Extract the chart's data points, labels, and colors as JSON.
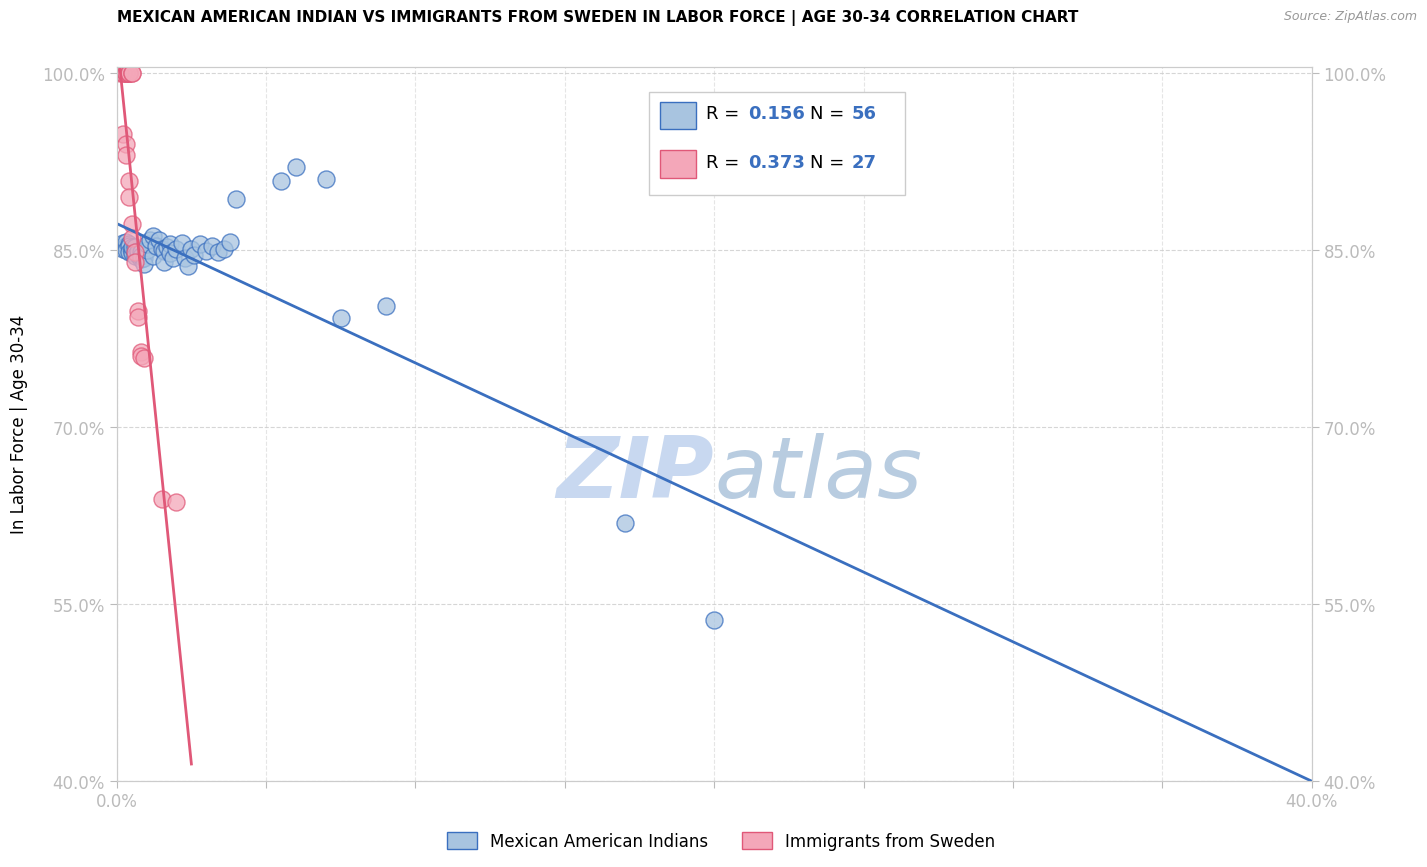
{
  "title": "MEXICAN AMERICAN INDIAN VS IMMIGRANTS FROM SWEDEN IN LABOR FORCE | AGE 30-34 CORRELATION CHART",
  "source": "Source: ZipAtlas.com",
  "ylabel": "In Labor Force | Age 30-34",
  "x_min": 0.0,
  "x_max": 0.4,
  "y_min": 0.4,
  "y_max": 1.005,
  "x_ticks": [
    0.0,
    0.05,
    0.1,
    0.15,
    0.2,
    0.25,
    0.3,
    0.35,
    0.4
  ],
  "x_tick_labels": [
    "0.0%",
    "",
    "",
    "",
    "",
    "",
    "",
    "",
    "40.0%"
  ],
  "y_ticks": [
    0.4,
    0.55,
    0.7,
    0.85,
    1.0
  ],
  "y_tick_labels": [
    "40.0%",
    "55.0%",
    "70.0%",
    "85.0%",
    "100.0%"
  ],
  "blue_R": 0.156,
  "blue_N": 56,
  "pink_R": 0.373,
  "pink_N": 27,
  "blue_color": "#a8c4e0",
  "pink_color": "#f4a7b9",
  "blue_line_color": "#3a6fbf",
  "pink_line_color": "#e05878",
  "blue_scatter": [
    [
      0.002,
      0.851
    ],
    [
      0.002,
      0.856
    ],
    [
      0.003,
      0.853
    ],
    [
      0.003,
      0.857
    ],
    [
      0.003,
      0.85
    ],
    [
      0.004,
      0.855
    ],
    [
      0.004,
      0.853
    ],
    [
      0.004,
      0.848
    ],
    [
      0.005,
      0.851
    ],
    [
      0.005,
      0.849
    ],
    [
      0.005,
      0.847
    ],
    [
      0.005,
      0.852
    ],
    [
      0.006,
      0.848
    ],
    [
      0.006,
      0.852
    ],
    [
      0.006,
      0.845
    ],
    [
      0.007,
      0.846
    ],
    [
      0.007,
      0.849
    ],
    [
      0.008,
      0.848
    ],
    [
      0.008,
      0.842
    ],
    [
      0.008,
      0.845
    ],
    [
      0.009,
      0.843
    ],
    [
      0.009,
      0.838
    ],
    [
      0.01,
      0.85
    ],
    [
      0.01,
      0.855
    ],
    [
      0.011,
      0.858
    ],
    [
      0.012,
      0.862
    ],
    [
      0.012,
      0.845
    ],
    [
      0.013,
      0.853
    ],
    [
      0.014,
      0.858
    ],
    [
      0.015,
      0.851
    ],
    [
      0.016,
      0.849
    ],
    [
      0.016,
      0.84
    ],
    [
      0.017,
      0.852
    ],
    [
      0.018,
      0.855
    ],
    [
      0.018,
      0.847
    ],
    [
      0.019,
      0.843
    ],
    [
      0.02,
      0.851
    ],
    [
      0.022,
      0.856
    ],
    [
      0.023,
      0.843
    ],
    [
      0.024,
      0.836
    ],
    [
      0.025,
      0.851
    ],
    [
      0.026,
      0.846
    ],
    [
      0.028,
      0.855
    ],
    [
      0.03,
      0.849
    ],
    [
      0.032,
      0.853
    ],
    [
      0.034,
      0.848
    ],
    [
      0.036,
      0.851
    ],
    [
      0.038,
      0.857
    ],
    [
      0.04,
      0.893
    ],
    [
      0.055,
      0.908
    ],
    [
      0.06,
      0.92
    ],
    [
      0.07,
      0.91
    ],
    [
      0.075,
      0.792
    ],
    [
      0.09,
      0.802
    ],
    [
      0.17,
      0.618
    ],
    [
      0.2,
      0.536
    ]
  ],
  "pink_scatter": [
    [
      0.001,
      1.0
    ],
    [
      0.002,
      1.0
    ],
    [
      0.002,
      1.0
    ],
    [
      0.003,
      1.0
    ],
    [
      0.003,
      1.0
    ],
    [
      0.003,
      1.0
    ],
    [
      0.004,
      1.0
    ],
    [
      0.004,
      1.0
    ],
    [
      0.004,
      1.0
    ],
    [
      0.005,
      1.0
    ],
    [
      0.005,
      1.0
    ],
    [
      0.002,
      0.948
    ],
    [
      0.003,
      0.94
    ],
    [
      0.003,
      0.93
    ],
    [
      0.004,
      0.908
    ],
    [
      0.004,
      0.895
    ],
    [
      0.005,
      0.872
    ],
    [
      0.005,
      0.86
    ],
    [
      0.006,
      0.848
    ],
    [
      0.006,
      0.84
    ],
    [
      0.007,
      0.798
    ],
    [
      0.007,
      0.793
    ],
    [
      0.008,
      0.763
    ],
    [
      0.008,
      0.76
    ],
    [
      0.009,
      0.758
    ],
    [
      0.015,
      0.639
    ],
    [
      0.02,
      0.636
    ]
  ],
  "watermark_zip": "ZIP",
  "watermark_atlas": "atlas",
  "watermark_color": "#c8d8f0",
  "legend_blue_label": "Mexican American Indians",
  "legend_pink_label": "Immigrants from Sweden",
  "figsize": [
    14.06,
    8.92
  ],
  "dpi": 100
}
